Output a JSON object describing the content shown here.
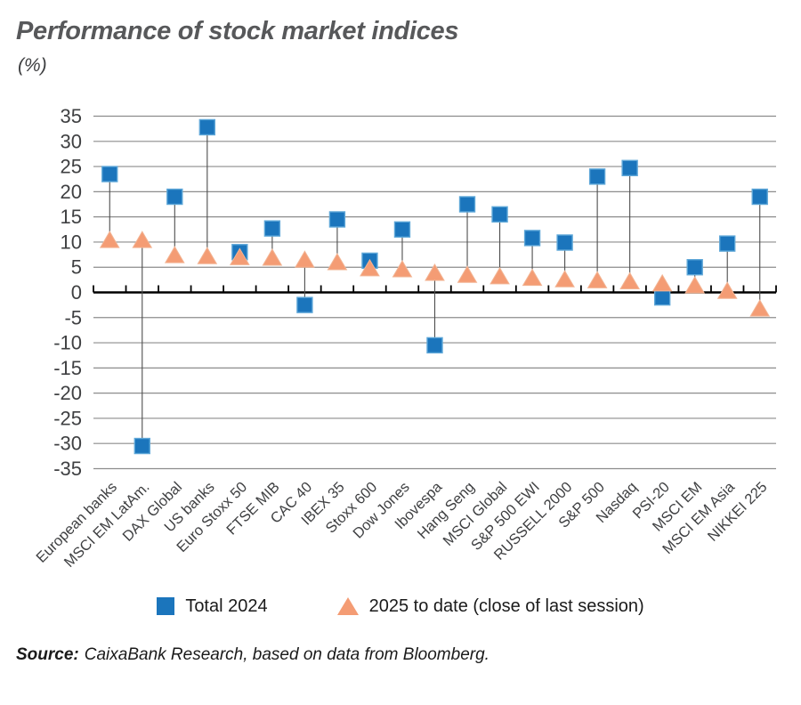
{
  "header": {
    "title": "Performance of stock market indices",
    "unit_label": "(%)"
  },
  "chart_data": {
    "type": "scatter",
    "title": "Performance of stock market indices",
    "unit": "%",
    "categories": [
      "European banks",
      "MSCI EM LatAm.",
      "DAX Global",
      "US banks",
      "Euro Stoxx 50",
      "FTSE MIB",
      "CAC 40",
      "IBEX 35",
      "Stoxx 600",
      "Dow Jones",
      "Ibovespa",
      "Hang Seng",
      "MSCI Global",
      "S&P 500 EWI",
      "RUSSELL 2000",
      "S&P 500",
      "Nasdaq",
      "PSI-20",
      "MSCI EM",
      "MSCI EM Asia",
      "NIKKEI 225"
    ],
    "series": [
      {
        "name": "Total 2024",
        "marker": "square",
        "color": "#1b75bc",
        "marker_edge_color": "#5ea7d8",
        "values": [
          23.5,
          -30.5,
          19.0,
          32.8,
          8.0,
          12.7,
          -2.5,
          14.5,
          6.3,
          12.5,
          -10.5,
          17.5,
          15.5,
          10.8,
          9.9,
          23.0,
          24.7,
          -1.0,
          5.0,
          9.7,
          19.0
        ]
      },
      {
        "name": "2025 to date (close of last session)",
        "marker": "triangle",
        "color": "#f49c74",
        "marker_edge_color": "#f2b493",
        "values": [
          10.4,
          10.4,
          7.4,
          7.2,
          7.0,
          6.9,
          6.5,
          6.0,
          4.8,
          4.6,
          3.9,
          3.5,
          3.2,
          2.9,
          2.6,
          2.4,
          2.2,
          1.8,
          1.4,
          0.3,
          -3.2
        ]
      }
    ],
    "ylim": [
      -35,
      35
    ],
    "ytick_step": 5,
    "grid": true,
    "grid_color": "#8c8c8c",
    "axis_color": "#000000",
    "connector_color": "#4d4d4d",
    "connector_lines": true,
    "legend_position": "bottom"
  },
  "source": {
    "prefix": "Source:",
    "text": "CaixaBank Research, based on data from Bloomberg."
  }
}
